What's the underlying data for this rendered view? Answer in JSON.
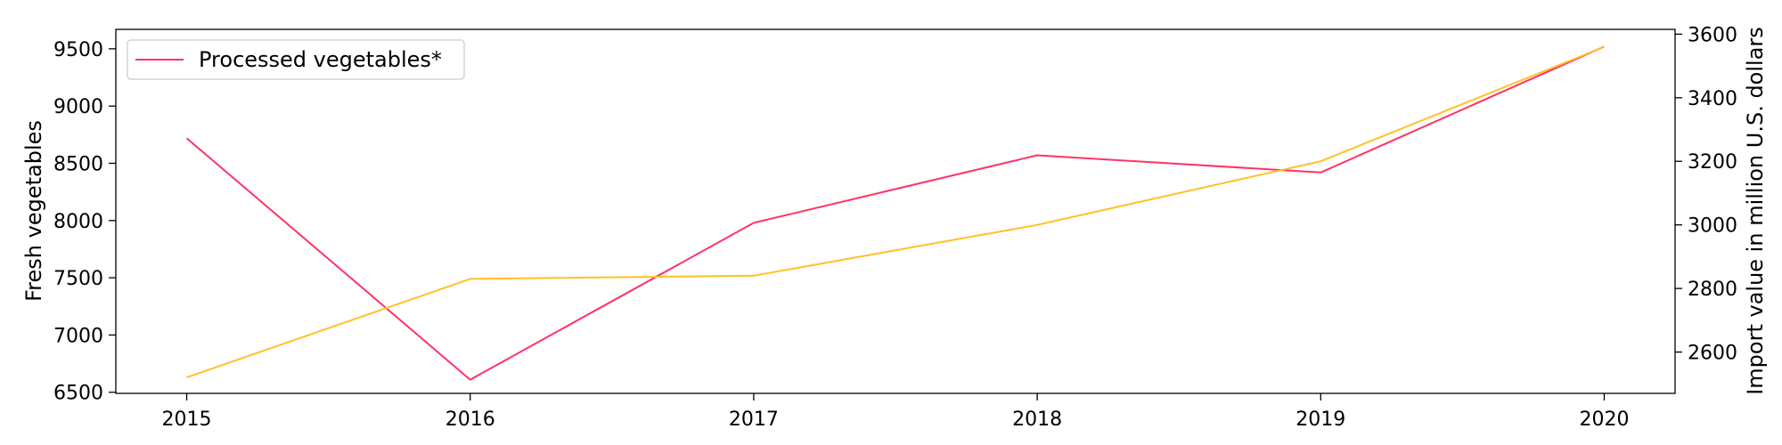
{
  "chart_data": {
    "type": "line",
    "x": [
      2015,
      2016,
      2017,
      2018,
      2019,
      2020
    ],
    "xticks": [
      "2015",
      "2016",
      "2017",
      "2018",
      "2019",
      "2020"
    ],
    "series": [
      {
        "name": "Processed vegetables*",
        "axis": "left",
        "color": "#ff3366",
        "values": [
          8720,
          6610,
          7980,
          8570,
          8420,
          9520
        ]
      },
      {
        "axis": "right",
        "color": "#ffc125",
        "values": [
          2520,
          2830,
          2840,
          3000,
          3200,
          3560
        ]
      }
    ],
    "ylabel_left": "Fresh vegetables",
    "ylabel_right": "Import value in million U.S. dollars",
    "yticks_left": [
      6500,
      7000,
      7500,
      8000,
      8500,
      9000,
      9500
    ],
    "yticks_right": [
      2600,
      2800,
      3000,
      3200,
      3400,
      3600
    ],
    "ylim_left": [
      6490,
      9670
    ],
    "ylim_right": [
      2470,
      3615
    ],
    "xlim": [
      2014.75,
      2020.25
    ],
    "grid": false,
    "legend_position": "top-left"
  }
}
